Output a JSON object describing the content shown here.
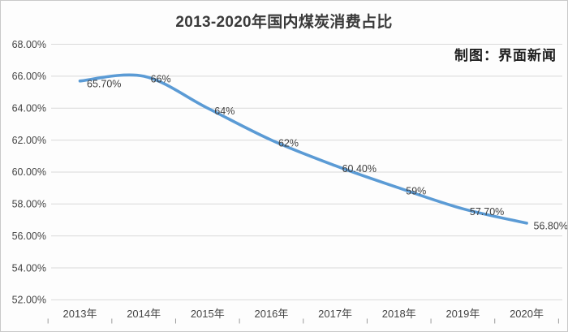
{
  "window": {
    "background": "#fdfdfd",
    "border_color": "#c9c9c9"
  },
  "header": {
    "title": "2013-2020年国内煤炭消费占比",
    "credit": "制图：界面新闻"
  },
  "chart_data": {
    "type": "line",
    "title": "2013-2020年国内煤炭消费占比",
    "categories": [
      "2013年",
      "2014年",
      "2015年",
      "2016年",
      "2017年",
      "2018年",
      "2019年",
      "2020年"
    ],
    "series": [
      {
        "name": "国内煤炭消费占比",
        "values": [
          65.7,
          66,
          64,
          62,
          60.4,
          59,
          57.7,
          56.8
        ],
        "labels": [
          "65.70%",
          "66%",
          "64%",
          "62%",
          "60.40%",
          "59%",
          "57.70%",
          "56.80%"
        ],
        "color": "#5b9bd5"
      }
    ],
    "xlabel": "",
    "ylabel": "",
    "ylim": [
      52,
      68
    ],
    "ytick_step": 2,
    "ytick_labels": [
      "68.00%",
      "66.00%",
      "64.00%",
      "62.00%",
      "60.00%",
      "58.00%",
      "56.00%",
      "54.00%",
      "52.00%"
    ],
    "grid": true,
    "legend": "none",
    "smooth": true,
    "style": {
      "line_color": "#5b9bd5",
      "gridline_color": "#d9d9d9",
      "axis_text_color": "#454545",
      "data_label_color": "#3f3f3f",
      "title_color": "#3a3a3a",
      "credit_color": "#1f1f1f",
      "tick_color": "#9b9b9b"
    }
  }
}
